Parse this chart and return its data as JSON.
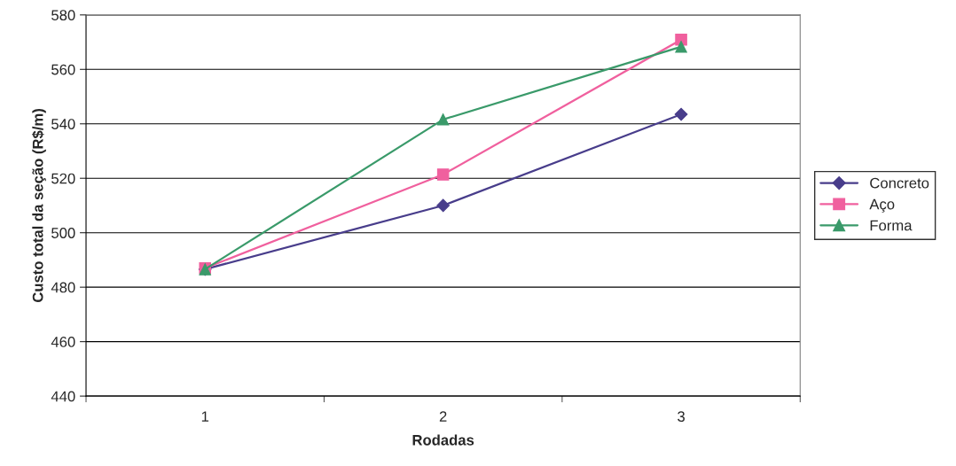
{
  "chart_data": {
    "type": "line",
    "xlabel": "Rodadas",
    "ylabel": "Custo total da seção (R$/m)",
    "categories": [
      "1",
      "2",
      "3"
    ],
    "series": [
      {
        "name": "Concreto",
        "color": "#483d8b",
        "marker": "diamond",
        "values": [
          486.6,
          510,
          543.5
        ]
      },
      {
        "name": "Aço",
        "color": "#f0609e",
        "marker": "square",
        "values": [
          487,
          521.4,
          570.9
        ]
      },
      {
        "name": "Forma",
        "color": "#3a9a6a",
        "marker": "triangle",
        "values": [
          486.6,
          541.6,
          568.3
        ]
      }
    ],
    "ylim": [
      440,
      580
    ],
    "yticks": [
      440,
      460,
      480,
      500,
      520,
      540,
      560,
      580
    ],
    "grid": "y",
    "legend": "right",
    "line_style": "solid"
  }
}
